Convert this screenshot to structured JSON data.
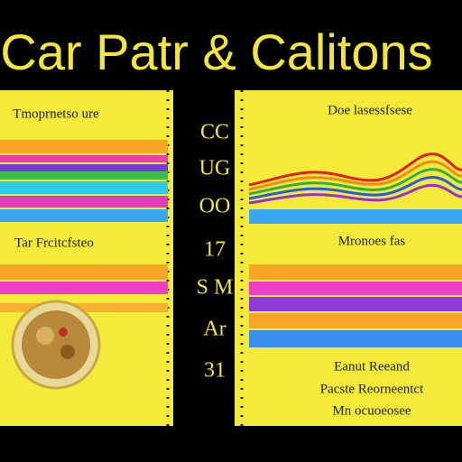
{
  "header": {
    "title": "Car Patr & Calitons"
  },
  "left_panel": {
    "heading": "Tmoprnetso ure",
    "subheading": "Tar Frcitcfsteo"
  },
  "middle_column": {
    "labels": [
      "CC",
      "UG",
      "OO",
      "17",
      "S M",
      "Ar",
      "31"
    ]
  },
  "right_panel": {
    "heading": "Doe lasessfsese",
    "subheading": "Mronoes fas",
    "notes": [
      "Eanut Reeand",
      "Pacste Reorneentct",
      "Mn ocuoeosee"
    ]
  }
}
